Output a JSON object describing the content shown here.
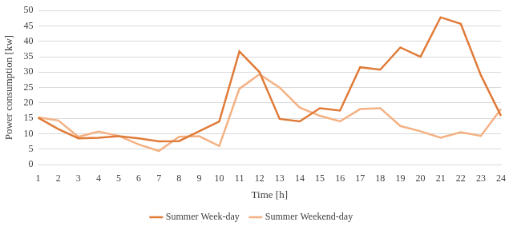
{
  "chart_data": {
    "type": "line",
    "x_label": "Time [h]",
    "y_label": "Power consumption [kw]",
    "categories": [
      1,
      2,
      3,
      4,
      5,
      6,
      7,
      8,
      9,
      10,
      11,
      12,
      13,
      14,
      15,
      16,
      17,
      18,
      19,
      20,
      21,
      22,
      23,
      24
    ],
    "series": [
      {
        "name": "Summer Week-day",
        "color": "#e07b39",
        "values": [
          15.2,
          11.5,
          8.5,
          8.7,
          9.2,
          8.5,
          7.5,
          7.6,
          10.8,
          14.0,
          36.7,
          30.0,
          14.8,
          14.0,
          18.3,
          17.5,
          31.6,
          30.8,
          38.0,
          35.0,
          47.8,
          45.7,
          29.0,
          15.8
        ]
      },
      {
        "name": "Summer Weekend-day",
        "color": "#f4b183",
        "values": [
          15.3,
          14.3,
          9.0,
          10.7,
          9.3,
          6.5,
          4.4,
          9.0,
          9.2,
          6.0,
          24.6,
          29.3,
          25.0,
          18.5,
          15.8,
          14.0,
          18.0,
          18.3,
          12.5,
          10.8,
          8.7,
          10.5,
          9.3,
          18.0
        ]
      }
    ],
    "ylim": [
      0,
      50
    ],
    "yticks": [
      0,
      5,
      10,
      15,
      20,
      25,
      30,
      35,
      40,
      45,
      50
    ],
    "grid": true,
    "legend": "bottom"
  }
}
